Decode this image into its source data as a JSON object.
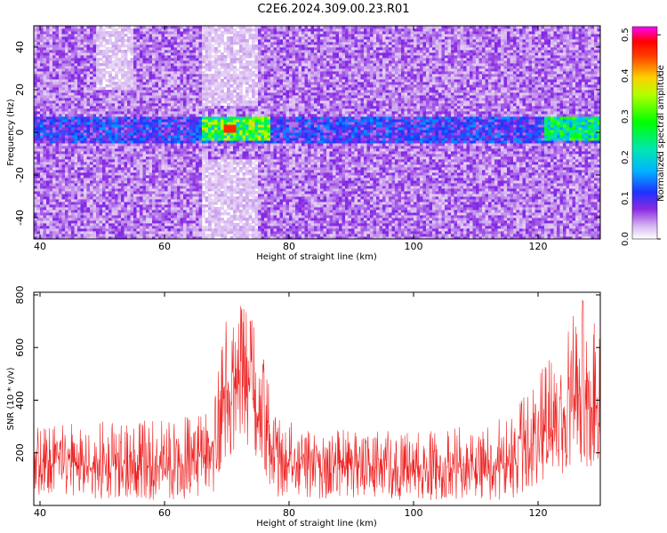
{
  "title": "C2E6.2024.309.00.23.R01",
  "chart_data": [
    {
      "type": "heatmap",
      "xlabel": "Height of straight line (km)",
      "ylabel": "Frequency (Hz)",
      "xlim": [
        39,
        130
      ],
      "ylim": [
        -50,
        50
      ],
      "xticks": [
        40,
        60,
        80,
        100,
        120
      ],
      "yticks": [
        -40,
        -20,
        0,
        20,
        40
      ],
      "colorbar": {
        "label": "Normalized spectral amplitude",
        "range": [
          0,
          0.52
        ],
        "ticks": [
          0.0,
          0.1,
          0.2,
          0.3,
          0.4,
          0.5
        ],
        "colormap": "rainbow (white-violet-blue-cyan-green-yellow-red-magenta)"
      },
      "features": [
        {
          "desc": "band near 0 Hz across all heights",
          "freq_range": [
            -5,
            8
          ],
          "x_range": [
            39,
            130
          ],
          "amplitude": 0.12
        },
        {
          "desc": "strong patch",
          "x_range": [
            66,
            77
          ],
          "freq_range": [
            -4,
            8
          ],
          "amplitude": 0.3,
          "peak": 0.46,
          "peak_at": [
            70.5,
            2
          ]
        },
        {
          "desc": "strong patch",
          "x_range": [
            121,
            130
          ],
          "freq_range": [
            -4,
            10
          ],
          "amplitude": 0.25
        }
      ]
    },
    {
      "type": "line",
      "xlabel": "Height of straight line (km)",
      "ylabel": "SNR (10 * v/v)",
      "xlim": [
        39,
        130
      ],
      "ylim": [
        0,
        810
      ],
      "xticks": [
        40,
        60,
        80,
        100,
        120
      ],
      "yticks": [
        200,
        400,
        600,
        800
      ],
      "color": "#ee2222",
      "series_profile": {
        "x": [
          39,
          50,
          60,
          65,
          68,
          70,
          72,
          74,
          76,
          78,
          80,
          85,
          90,
          100,
          110,
          115,
          118,
          120,
          124,
          127,
          130
        ],
        "center": [
          150,
          150,
          150,
          165,
          220,
          380,
          480,
          420,
          300,
          180,
          160,
          150,
          150,
          140,
          145,
          160,
          200,
          250,
          330,
          380,
          390
        ],
        "max": [
          300,
          320,
          340,
          350,
          450,
          740,
          780,
          720,
          560,
          360,
          320,
          300,
          290,
          290,
          300,
          340,
          420,
          500,
          620,
          810,
          700
        ],
        "min": [
          20,
          20,
          20,
          20,
          40,
          160,
          250,
          200,
          100,
          30,
          20,
          20,
          20,
          20,
          20,
          20,
          40,
          80,
          120,
          140,
          150
        ]
      }
    }
  ]
}
